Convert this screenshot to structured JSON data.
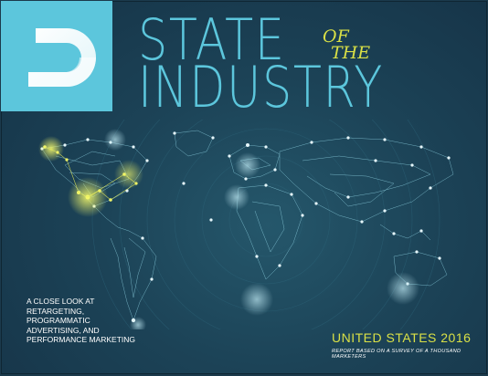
{
  "cover": {
    "title_line1": "STATE",
    "title_of": "OF",
    "title_the": "THE",
    "title_line2": "INDUSTRY",
    "tagline": "A CLOSE LOOK AT RETARGETING, PROGRAMMATIC ADVERTISING, AND PERFORMANCE MARKETING",
    "edition": "UNITED STATES 2016",
    "subline": "REPORT BASED ON A SURVEY OF A THOUSAND MARKETERS"
  },
  "colors": {
    "background": "#1c4357",
    "accent_blue": "#5cc6dc",
    "accent_yellow": "#d9e046",
    "text_white": "#ffffff"
  },
  "logo": {
    "icon": "brand-logo-icon"
  }
}
